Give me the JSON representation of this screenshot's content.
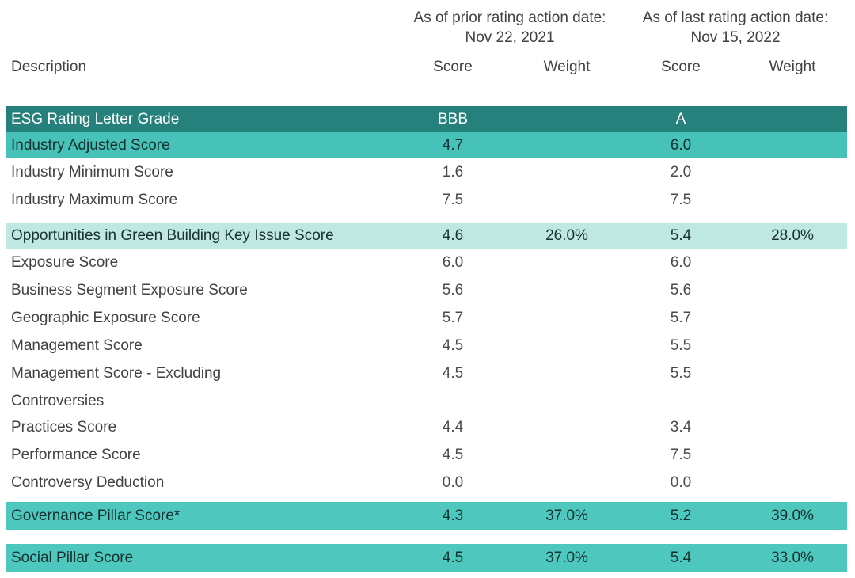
{
  "header": {
    "prior_group": {
      "line1": "As of prior rating action date:",
      "line2": "Nov 22, 2021"
    },
    "last_group": {
      "line1": "As of last rating action date:",
      "line2": "Nov 15, 2022"
    },
    "columns": {
      "description": "Description",
      "score_prior": "Score",
      "weight_prior": "Weight",
      "score_last": "Score",
      "weight_last": "Weight"
    }
  },
  "colors": {
    "dark_teal_row": "#26807b",
    "teal_row": "#46c2b9",
    "pillar_teal_row": "#4ec8be",
    "mint_row": "#bee8e1",
    "text_dark": "#3e3e3e",
    "text_on_dark": "#ffffff"
  },
  "table": {
    "rows": [
      {
        "label": "ESG Rating Letter Grade",
        "score_prior": "BBB",
        "weight_prior": "",
        "score_last": "A",
        "weight_last": ""
      },
      {
        "label": "Industry Adjusted Score",
        "score_prior": "4.7",
        "weight_prior": "",
        "score_last": "6.0",
        "weight_last": ""
      },
      {
        "label": "Industry Minimum Score",
        "score_prior": "1.6",
        "weight_prior": "",
        "score_last": "2.0",
        "weight_last": ""
      },
      {
        "label": "Industry Maximum Score",
        "score_prior": "7.5",
        "weight_prior": "",
        "score_last": "7.5",
        "weight_last": ""
      },
      {
        "label": "Opportunities in Green Building Key Issue Score",
        "score_prior": "4.6",
        "weight_prior": "26.0%",
        "score_last": "5.4",
        "weight_last": "28.0%"
      },
      {
        "label": "Exposure Score",
        "score_prior": "6.0",
        "weight_prior": "",
        "score_last": "6.0",
        "weight_last": ""
      },
      {
        "label": "Business Segment Exposure Score",
        "score_prior": "5.6",
        "weight_prior": "",
        "score_last": "5.6",
        "weight_last": ""
      },
      {
        "label": "Geographic Exposure Score",
        "score_prior": "5.7",
        "weight_prior": "",
        "score_last": "5.7",
        "weight_last": ""
      },
      {
        "label": "Management Score",
        "score_prior": "4.5",
        "weight_prior": "",
        "score_last": "5.5",
        "weight_last": ""
      },
      {
        "label": "Management Score - Excluding Controversies",
        "score_prior": "4.5",
        "weight_prior": "",
        "score_last": "5.5",
        "weight_last": ""
      },
      {
        "label": "Practices Score",
        "score_prior": "4.4",
        "weight_prior": "",
        "score_last": "3.4",
        "weight_last": ""
      },
      {
        "label": "Performance Score",
        "score_prior": "4.5",
        "weight_prior": "",
        "score_last": "7.5",
        "weight_last": ""
      },
      {
        "label": "Controversy Deduction",
        "score_prior": "0.0",
        "weight_prior": "",
        "score_last": "0.0",
        "weight_last": ""
      },
      {
        "label": "Governance Pillar Score*",
        "score_prior": "4.3",
        "weight_prior": "37.0%",
        "score_last": "5.2",
        "weight_last": "39.0%"
      },
      {
        "label": "Social Pillar Score",
        "score_prior": "4.5",
        "weight_prior": "37.0%",
        "score_last": "5.4",
        "weight_last": "33.0%"
      }
    ]
  }
}
